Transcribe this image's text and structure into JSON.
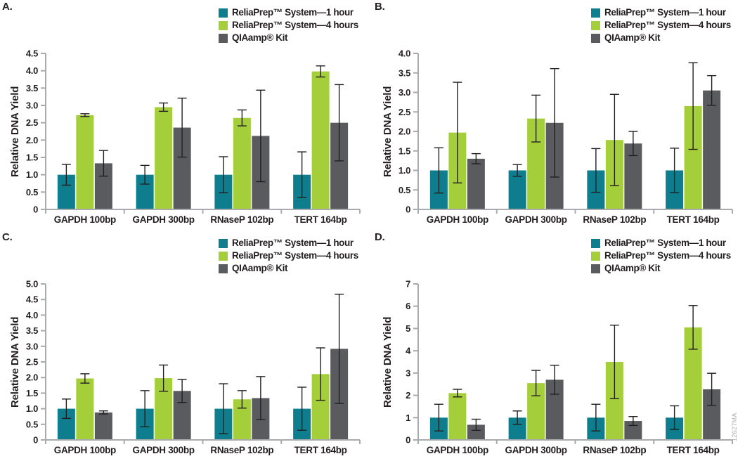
{
  "figure_note": "12627MA",
  "colors": {
    "series": [
      "#0e7d8d",
      "#a5ce3b",
      "#5a5b5e"
    ],
    "axis_line": "#a8aaad",
    "error_bar": "#231f20",
    "text": "#231f20",
    "note": "#a9abae",
    "background": "#ffffff"
  },
  "chart_data": [
    {
      "type": "bar",
      "panel_label": "A.",
      "ylabel": "Relative DNA Yield",
      "categories": [
        "GAPDH 100bp",
        "GAPDH 300bp",
        "RNaseP 102bp",
        "TERT 164bp"
      ],
      "ylim": [
        0,
        4.5
      ],
      "ytick_labels": [
        "0",
        "0.5",
        "1.0",
        "1.5",
        "2.0",
        "2.5",
        "3.0",
        "3.5",
        "4.0",
        "4.5"
      ],
      "grid": false,
      "legend_position": "top-right",
      "series": [
        {
          "name": "ReliaPrep™ System—1 hour",
          "values": [
            1.0,
            1.0,
            1.0,
            1.0
          ],
          "errors": [
            0.3,
            0.27,
            0.52,
            0.66
          ]
        },
        {
          "name": "ReliaPrep™ System—4 hours",
          "values": [
            2.72,
            2.95,
            2.64,
            3.98
          ],
          "errors": [
            0.04,
            0.12,
            0.23,
            0.16
          ]
        },
        {
          "name": "QIAamp® Kit",
          "values": [
            1.33,
            2.36,
            2.12,
            2.5
          ],
          "errors": [
            0.37,
            0.85,
            1.32,
            1.1
          ]
        }
      ]
    },
    {
      "type": "bar",
      "panel_label": "B.",
      "ylabel": "Relative DNA Yield",
      "categories": [
        "GAPDH 100bp",
        "GAPDH 300bp",
        "RNaseP 102bp",
        "TERT 164bp"
      ],
      "ylim": [
        0,
        4.0
      ],
      "ytick_labels": [
        "0",
        "0.5",
        "1.0",
        "1.5",
        "2.0",
        "2.5",
        "3.0",
        "3.5",
        "4.0"
      ],
      "grid": false,
      "legend_position": "top-right",
      "series": [
        {
          "name": "ReliaPrep™ System—1 hour",
          "values": [
            1.0,
            1.0,
            1.0,
            1.0
          ],
          "errors": [
            0.58,
            0.15,
            0.56,
            0.57
          ]
        },
        {
          "name": "ReliaPrep™ System—4 hours",
          "values": [
            1.97,
            2.33,
            1.78,
            2.65
          ],
          "errors": [
            1.29,
            0.6,
            1.17,
            1.11
          ]
        },
        {
          "name": "QIAamp® Kit",
          "values": [
            1.3,
            2.22,
            1.69,
            3.05
          ],
          "errors": [
            0.13,
            1.39,
            0.31,
            0.38
          ]
        }
      ]
    },
    {
      "type": "bar",
      "panel_label": "C.",
      "ylabel": "Relative DNA Yield",
      "categories": [
        "GAPDH 100bp",
        "GAPDH 300bp",
        "RNaseP 102bp",
        "TERT 164bp"
      ],
      "ylim": [
        0,
        5.0
      ],
      "ytick_labels": [
        "0",
        "0.5",
        "1.0",
        "1.5",
        "2.0",
        "2.5",
        "3.0",
        "3.5",
        "4.0",
        "4.5",
        "5.0"
      ],
      "grid": false,
      "legend_position": "top-right",
      "series": [
        {
          "name": "ReliaPrep™ System—1 hour",
          "values": [
            1.0,
            1.0,
            1.0,
            1.0
          ],
          "errors": [
            0.31,
            0.58,
            0.8,
            0.69
          ]
        },
        {
          "name": "ReliaPrep™ System—4 hours",
          "values": [
            1.97,
            1.98,
            1.3,
            2.11
          ],
          "errors": [
            0.15,
            0.42,
            0.28,
            0.84
          ]
        },
        {
          "name": "QIAamp® Kit",
          "values": [
            0.88,
            1.57,
            1.34,
            2.92
          ],
          "errors": [
            0.05,
            0.37,
            0.69,
            1.75
          ]
        }
      ]
    },
    {
      "type": "bar",
      "panel_label": "D.",
      "ylabel": "Relative DNA Yield",
      "categories": [
        "GAPDH 100bp",
        "GAPDH 300bp",
        "RNaseP 102bp",
        "TERT 164bp"
      ],
      "ylim": [
        0,
        7
      ],
      "ytick_labels": [
        "0",
        "1",
        "2",
        "3",
        "4",
        "5",
        "6",
        "7"
      ],
      "grid": false,
      "legend_position": "top-right",
      "series": [
        {
          "name": "ReliaPrep™ System—1 hour",
          "values": [
            1.0,
            1.0,
            1.0,
            1.0
          ],
          "errors": [
            0.6,
            0.3,
            0.6,
            0.53
          ]
        },
        {
          "name": "ReliaPrep™ System—4 hours",
          "values": [
            2.1,
            2.55,
            3.5,
            5.05
          ],
          "errors": [
            0.17,
            0.57,
            1.65,
            0.98
          ]
        },
        {
          "name": "QIAamp® Kit",
          "values": [
            0.68,
            2.7,
            0.85,
            2.27
          ],
          "errors": [
            0.25,
            0.65,
            0.2,
            0.72
          ]
        }
      ]
    }
  ]
}
